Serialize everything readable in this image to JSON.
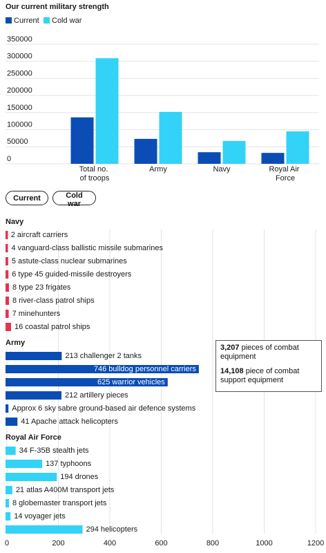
{
  "chart_data": [
    {
      "type": "bar",
      "title": "Our current military strength",
      "categories": [
        "Total no. of troops",
        "Army",
        "Navy",
        "Royal Air Force"
      ],
      "series": [
        {
          "name": "Current",
          "color": "#0b4db5",
          "values": [
            136000,
            73000,
            34000,
            32000
          ]
        },
        {
          "name": "Cold war",
          "color": "#33d2f7",
          "values": [
            309000,
            152000,
            67000,
            95000
          ]
        }
      ],
      "ylim": [
        0,
        350000
      ],
      "yticks": [
        0,
        50000,
        100000,
        150000,
        200000,
        250000,
        300000,
        350000
      ],
      "grid": true
    },
    {
      "type": "hbar",
      "series": [
        {
          "name": "Navy",
          "color": "#e3344f",
          "values": [
            2,
            4,
            5,
            6,
            8,
            8,
            7,
            16
          ],
          "value_labels": [
            "2 aircraft carriers",
            "4 vanguard-class ballistic missile submarines",
            "5 astute-class nuclear submarines",
            "6 type 45 guided-missile destroyers",
            "8 type 23 frigates",
            "8 river-class patrol ships",
            "7 minehunters",
            "16 coastal patrol ships"
          ]
        },
        {
          "name": "Army",
          "color": "#0b4db5",
          "values": [
            213,
            746,
            625,
            212,
            6,
            41
          ],
          "value_labels": [
            "213 challenger 2 tanks",
            "746 bulldog personnel carriers",
            "625 warrior vehicles",
            "212 artillery pieces",
            "Approx 6 sky sabre ground-based air defence systems",
            "41 Apache attack helicopters"
          ]
        },
        {
          "name": "Royal Air Force",
          "color": "#33d2f7",
          "values": [
            34,
            137,
            194,
            21,
            8,
            14,
            294
          ],
          "value_labels": [
            "34 F-35B stealth jets",
            "137 typhoons",
            "194 drones",
            "21 atlas A400M transport jets",
            "8 globemaster transport jets",
            "14 voyager jets",
            "294 helicopters"
          ]
        }
      ],
      "xlim": [
        0,
        1200
      ],
      "xticks": [
        0,
        200,
        400,
        600,
        800,
        1000,
        1200
      ],
      "grid": true,
      "annotation": [
        {
          "number": "3,207",
          "text": "pieces of combat equipment"
        },
        {
          "number": "14,108",
          "text": "piece of combat support equipment"
        }
      ]
    }
  ]
}
